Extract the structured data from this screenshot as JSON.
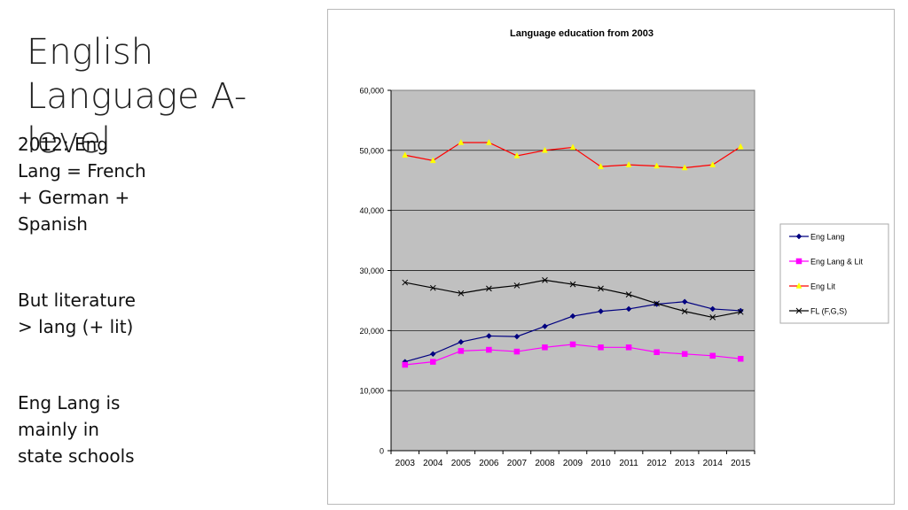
{
  "slide": {
    "title": "English Language A-level",
    "notes": [
      "2012: Eng\nLang = French\n+ German +\nSpanish",
      "But literature\n> lang (+ lit)",
      "Eng Lang is\nmainly in\nstate schools"
    ]
  },
  "chart_data": {
    "type": "line",
    "title": "Language education from 2003",
    "xlabel": "",
    "ylabel": "",
    "categories": [
      "2003",
      "2004",
      "2005",
      "2006",
      "2007",
      "2008",
      "2009",
      "2010",
      "2011",
      "2012",
      "2013",
      "2014",
      "2015"
    ],
    "ylim": [
      0,
      60000
    ],
    "yticks": [
      "0",
      "10,000",
      "20,000",
      "30,000",
      "40,000",
      "50,000",
      "60,000"
    ],
    "grid": true,
    "legend_position": "right",
    "plot_background": "#c0c0c0",
    "series": [
      {
        "name": "Eng Lang",
        "color": "#000080",
        "marker": "diamond",
        "values": [
          14800,
          16100,
          18100,
          19100,
          19000,
          20700,
          22400,
          23200,
          23600,
          24400,
          24800,
          23600,
          23300
        ]
      },
      {
        "name": "Eng Lang & Lit",
        "color": "#ff00ff",
        "marker": "square",
        "values": [
          14300,
          14800,
          16600,
          16800,
          16500,
          17200,
          17700,
          17200,
          17200,
          16400,
          16100,
          15800,
          15300
        ]
      },
      {
        "name": "Eng Lit",
        "color": "#ff0000",
        "marker": "triangle",
        "marker_color": "#ffff00",
        "values": [
          49200,
          48300,
          51300,
          51300,
          49100,
          50000,
          50500,
          47300,
          47600,
          47400,
          47100,
          47600,
          50600
        ]
      },
      {
        "name": "FL (F,G,S)",
        "color": "#000000",
        "marker": "x",
        "values": [
          28000,
          27100,
          26200,
          27000,
          27500,
          28400,
          27700,
          27000,
          26000,
          24500,
          23200,
          22200,
          23100
        ]
      }
    ]
  }
}
